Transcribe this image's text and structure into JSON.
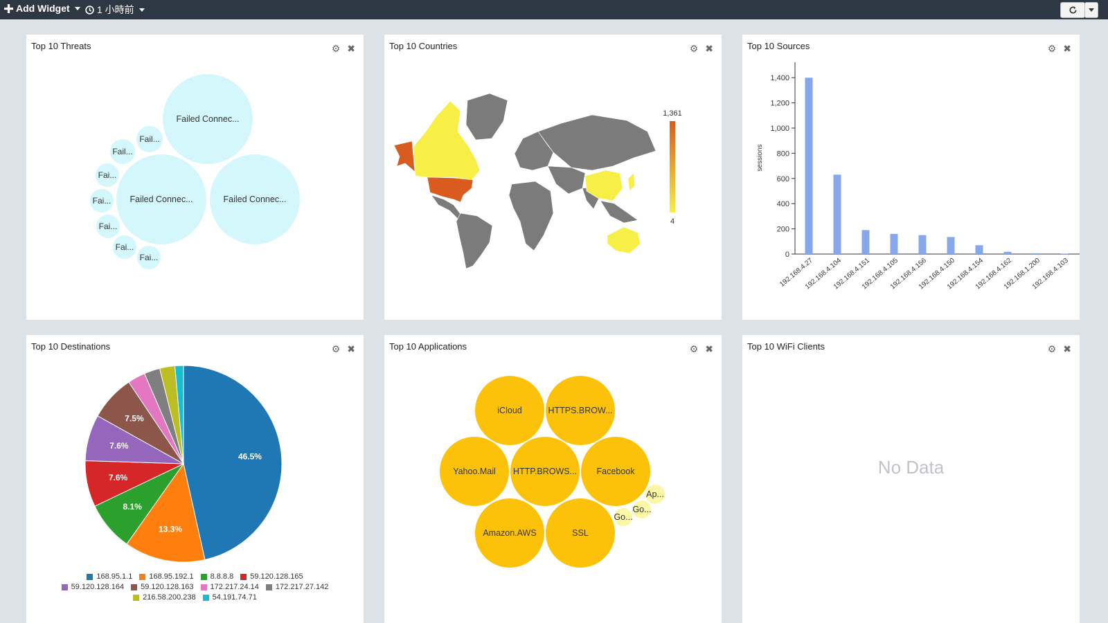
{
  "toolbar": {
    "add_widget_label": "Add Widget",
    "time_range_label": "1 小時前",
    "add_icon": "plus-icon",
    "clock_icon": "clock-icon",
    "refresh_icon": "refresh-icon"
  },
  "widgets": {
    "threats": {
      "title": "Top 10 Threats",
      "bubble_color": "#d4f7fb",
      "bubbles": [
        "Failed Connec...",
        "Failed Connec...",
        "Failed Connec...",
        "Fail...",
        "Fail...",
        "Fai...",
        "Fai...",
        "Fai...",
        "Fai...",
        "Fai..."
      ]
    },
    "countries": {
      "title": "Top 10 Countries",
      "scale_max": "1,361",
      "scale_min": "4",
      "high_color": "#d95c1e",
      "low_color": "#f7ef45",
      "no_data_color": "#7b7b7b"
    },
    "sources": {
      "title": "Top 10 Sources",
      "bar_color": "#86a8ea",
      "chart_data": {
        "type": "bar",
        "categories": [
          "192.168.4.27",
          "192.168.4.104",
          "192.168.4.151",
          "192.168.4.105",
          "192.168.4.156",
          "192.168.4.150",
          "192.168.4.154",
          "192.168.4.162",
          "192.168.1.200",
          "192.168.4.103"
        ],
        "values": [
          1400,
          630,
          190,
          160,
          150,
          135,
          70,
          18,
          6,
          3
        ],
        "ylabel": "sessions",
        "ylim": [
          0,
          1500
        ],
        "yticks": [
          0,
          200,
          400,
          600,
          800,
          1000,
          1200,
          1400
        ],
        "ytick_labels": [
          "0",
          "200",
          "400",
          "600",
          "800",
          "1,000",
          "1,200",
          "1,400"
        ]
      }
    },
    "destinations": {
      "title": "Top 10 Destinations",
      "chart_data": {
        "type": "pie",
        "labels": [
          "168.95.1.1",
          "168.95.192.1",
          "8.8.8.8",
          "59.120.128.165",
          "59.120.128.164",
          "59.120.128.163",
          "172.217.24.14",
          "172.217.27.142",
          "216.58.200.238",
          "54.191.74.71"
        ],
        "values": [
          46.5,
          13.3,
          8.1,
          7.6,
          7.6,
          7.5,
          2.9,
          2.6,
          2.5,
          1.4
        ],
        "slice_labels": [
          "46.5%",
          "13.3%",
          "8.1%",
          "7.6%",
          "7.6%",
          "7.5%",
          "",
          "",
          "",
          ""
        ],
        "colors": [
          "#1f77b4",
          "#ff7f0e",
          "#2ca02c",
          "#d62728",
          "#9467bd",
          "#8c564b",
          "#e377c2",
          "#7f7f7f",
          "#bcbd22",
          "#17becf"
        ],
        "legend_position": "bottom"
      }
    },
    "applications": {
      "title": "Top 10 Applications",
      "bubble_color": "#fcc20a",
      "small_bubble_color": "#fbf7a6",
      "bubbles": [
        "iCloud",
        "HTTPS.BROW...",
        "Yahoo.Mail",
        "HTTP.BROWS...",
        "Facebook",
        "Amazon.AWS",
        "SSL",
        "Ap...",
        "Go...",
        "Go..."
      ]
    },
    "wifi": {
      "title": "Top 10 WiFi Clients",
      "empty_text": "No Data"
    }
  }
}
